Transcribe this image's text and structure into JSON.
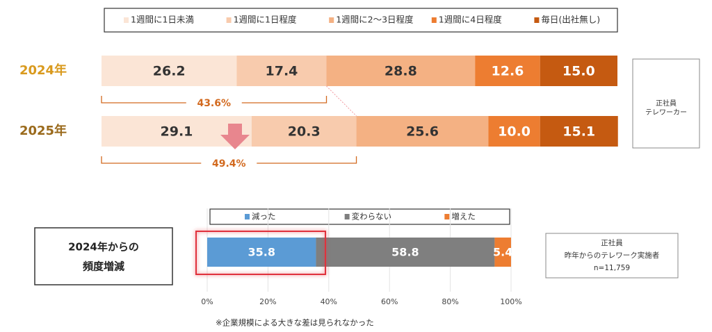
{
  "chart_data": [
    {
      "type": "stacked-bar",
      "categories": [
        "2024年",
        "2025年"
      ],
      "category_colors": [
        "#d99a1e",
        "#9a6a1c"
      ],
      "xlim": [
        0,
        100
      ],
      "series": [
        {
          "name": "1週間に1日未満",
          "color": "#fbe5d6",
          "label_color": "#333333",
          "values": [
            26.2,
            29.1
          ]
        },
        {
          "name": "1週間に1日程度",
          "color": "#f8cbad",
          "label_color": "#333333",
          "values": [
            17.4,
            20.3
          ]
        },
        {
          "name": "1週間に2～3日程度",
          "color": "#f4b183",
          "label_color": "#333333",
          "values": [
            28.8,
            25.6
          ]
        },
        {
          "name": "1週間に4日程度",
          "color": "#ed7d31",
          "label_color": "#ffffff",
          "values": [
            12.6,
            10.0
          ],
          "value_labels": [
            "12.6",
            "10.0"
          ]
        },
        {
          "name": "毎日(出社無し)",
          "color": "#c55a11",
          "label_color": "#ffffff",
          "values": [
            15.0,
            15.1
          ],
          "value_labels": [
            "15.0",
            "15.1"
          ]
        }
      ],
      "annotations": [
        {
          "value": 43.6,
          "label": "43.6%"
        },
        {
          "value": 49.4,
          "label": "49.4%"
        }
      ],
      "side_note": [
        "正社員",
        "テレワーカー"
      ]
    },
    {
      "type": "stacked-bar",
      "row_label": [
        "2024年からの",
        "頻度増減"
      ],
      "xlim": [
        0,
        100
      ],
      "xticks": [
        {
          "value": 0,
          "label": "0%"
        },
        {
          "value": 20,
          "label": "20%"
        },
        {
          "value": 40,
          "label": "40%"
        },
        {
          "value": 60,
          "label": "60%"
        },
        {
          "value": 80,
          "label": "80%"
        },
        {
          "value": 100,
          "label": "100%"
        }
      ],
      "grid": true,
      "series": [
        {
          "name": "減った",
          "color": "#5b9bd5",
          "label_color": "#ffffff",
          "values": [
            35.8
          ]
        },
        {
          "name": "変わらない",
          "color": "#7f7f7f",
          "label_color": "#ffffff",
          "values": [
            58.8
          ]
        },
        {
          "name": "増えた",
          "color": "#ed7d31",
          "label_color": "#ffffff",
          "values": [
            5.4
          ]
        }
      ],
      "side_note": [
        "正社員",
        "昨年からのテレワーク実施者",
        "n=11,759"
      ],
      "footnote": "※企業規模による大きな差は見られなかった"
    }
  ]
}
